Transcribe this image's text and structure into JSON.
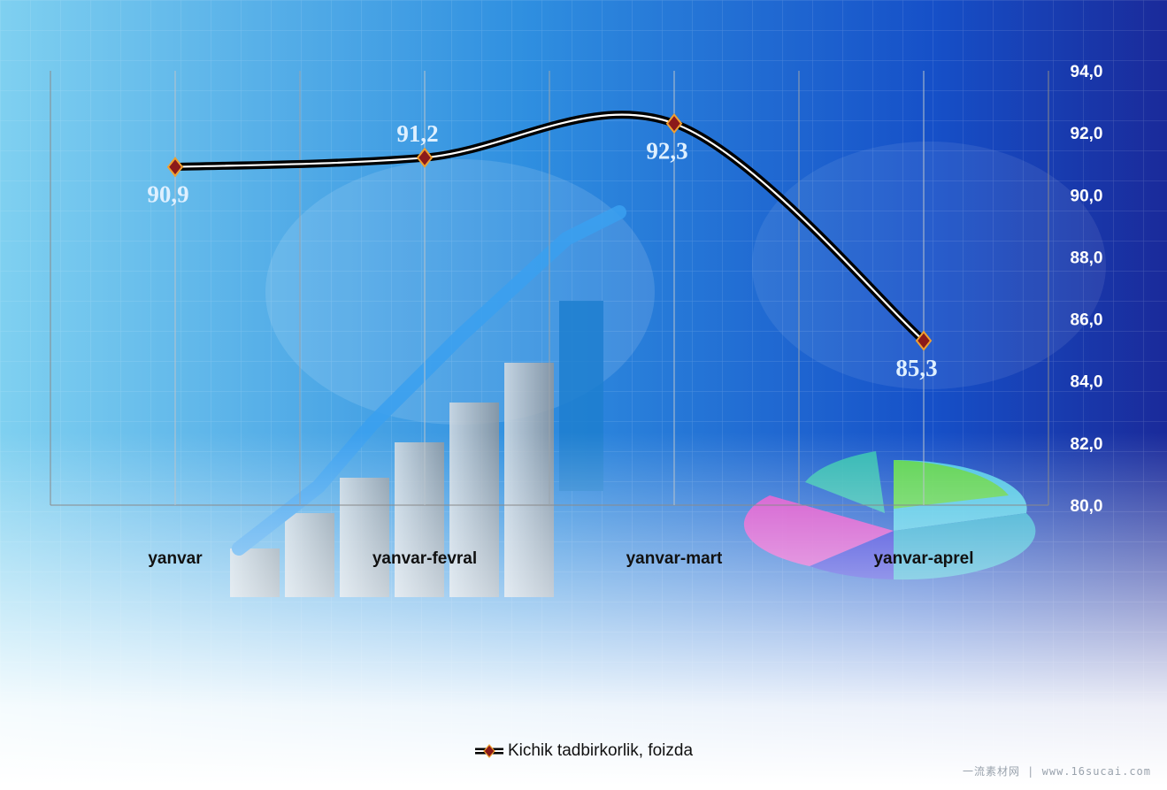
{
  "chart_data": {
    "type": "line",
    "title": "",
    "categories": [
      "yanvar",
      "yanvar-fevral",
      "yanvar-mart",
      "yanvar-aprel"
    ],
    "series": [
      {
        "name": "Kichik tadbirkorlik, foizda",
        "values": [
          90.9,
          91.2,
          92.3,
          85.3
        ]
      }
    ],
    "data_labels": [
      "90,9",
      "91,2",
      "92,3",
      "85,3"
    ],
    "y_ticks": [
      "80,0",
      "82,0",
      "84,0",
      "86,0",
      "88,0",
      "90,0",
      "92,0",
      "94,0"
    ],
    "ylim": [
      80,
      94
    ],
    "y_axis_side": "right",
    "grid": "vertical",
    "legend_position": "bottom",
    "colors": {
      "line": "#000000",
      "marker": "#8b1a1a",
      "marker_edge": "#f0a030",
      "label": "#dff0ff"
    }
  },
  "watermark": "一流素材网 | www.16sucai.com"
}
